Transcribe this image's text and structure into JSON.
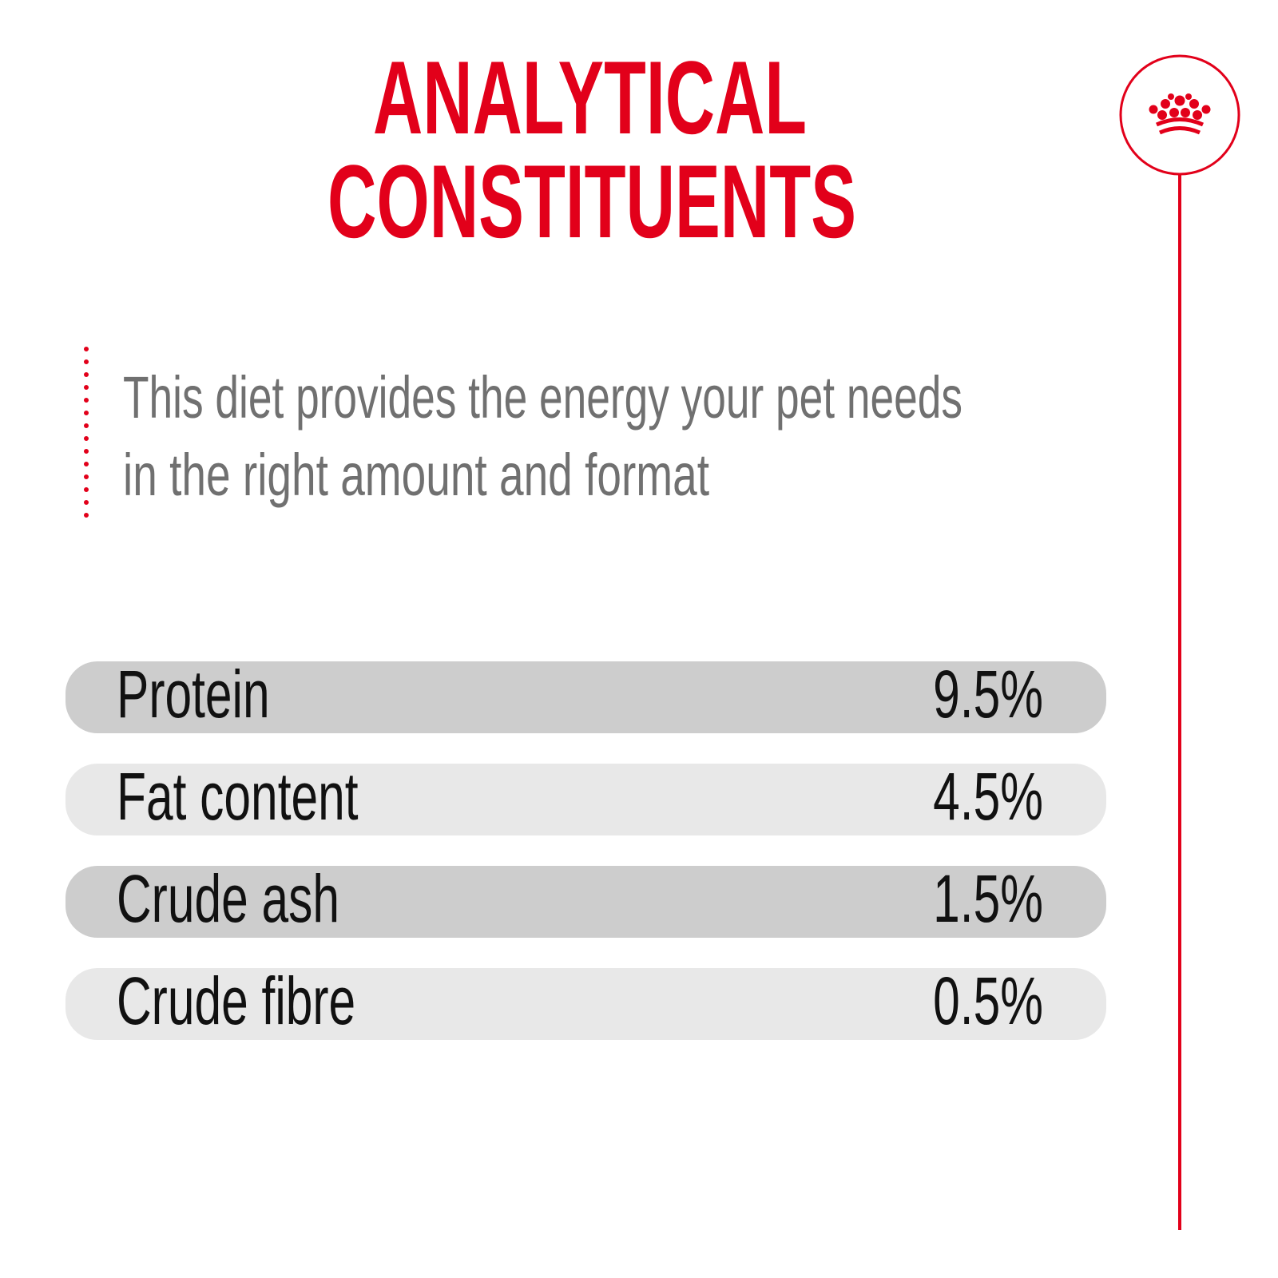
{
  "title": {
    "lines": [
      "ANALYTICAL",
      "CONSTITUENTS"
    ]
  },
  "description": {
    "lines": [
      "This diet provides the energy your pet needs",
      "in the right amount and format"
    ]
  },
  "table": {
    "rows": [
      [
        "Protein",
        "9.5%"
      ],
      [
        "Fat content",
        "4.5%"
      ],
      [
        "Crude ash",
        "1.5%"
      ],
      [
        "Crude fibre",
        "0.5%"
      ]
    ]
  }
}
